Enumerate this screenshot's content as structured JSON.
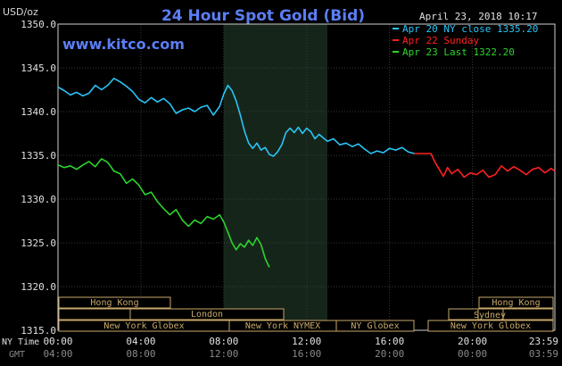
{
  "header": {
    "unit": "USD/oz",
    "title": "24 Hour Spot Gold (Bid)",
    "datetime": "April 23, 2018 10:17",
    "website": "www.kitco.com"
  },
  "legend": [
    {
      "label": "Apr 20 NY close 1335.20",
      "color": "#29c5f6"
    },
    {
      "label": "Apr 22 Sunday",
      "color": "#ff2020"
    },
    {
      "label": "Apr 23 Last 1322.20",
      "color": "#2bd42b"
    }
  ],
  "axes": {
    "x_label_ny": "NY Time",
    "x_label_gmt": "GMT",
    "ny_ticks": [
      "00:00",
      "04:00",
      "08:00",
      "12:00",
      "16:00",
      "20:00",
      "23:59"
    ],
    "gmt_ticks": [
      "04:00",
      "08:00",
      "12:00",
      "16:00",
      "20:00",
      "00:00",
      "03:59"
    ]
  },
  "sessions": {
    "row1": [
      {
        "label": "Hong Kong"
      },
      {
        "label": "Hong Kong"
      }
    ],
    "row2": [
      {
        "label": "London"
      },
      {
        "label": "Sydney"
      }
    ],
    "row3": [
      {
        "label": "New York Globex"
      },
      {
        "label": "New York NYMEX"
      },
      {
        "label": "NY Globex"
      },
      {
        "label": "New York Globex"
      }
    ]
  },
  "chart_data": {
    "type": "line",
    "x_unit": "hours (NY time)",
    "xlim": [
      0,
      23.98
    ],
    "ylim": [
      1315.0,
      1350.0
    ],
    "yticks": [
      "1315.0",
      "1320.0",
      "1325.0",
      "1330.0",
      "1335.0",
      "1340.0",
      "1345.0",
      "1350.0"
    ],
    "yticks_values": [
      1315,
      1320,
      1325,
      1330,
      1335,
      1340,
      1345,
      1350
    ],
    "shaded_region": [
      8.0,
      13.0
    ],
    "series": [
      {
        "name": "Apr 20 NY close 1335.20",
        "color": "#29c5f6",
        "x": [
          0,
          0.3,
          0.6,
          0.9,
          1.2,
          1.5,
          1.8,
          2.1,
          2.4,
          2.7,
          3.0,
          3.3,
          3.6,
          3.9,
          4.2,
          4.5,
          4.8,
          5.1,
          5.4,
          5.7,
          6.0,
          6.3,
          6.6,
          6.9,
          7.2,
          7.5,
          7.8,
          8.0,
          8.2,
          8.4,
          8.6,
          8.8,
          9.0,
          9.2,
          9.4,
          9.6,
          9.8,
          10.0,
          10.2,
          10.4,
          10.6,
          10.8,
          11.0,
          11.2,
          11.4,
          11.6,
          11.8,
          12.0,
          12.2,
          12.4,
          12.6,
          12.8,
          13.0,
          13.3,
          13.6,
          13.9,
          14.2,
          14.5,
          14.8,
          15.1,
          15.4,
          15.7,
          16.0,
          16.3,
          16.6,
          16.9,
          17.2
        ],
        "values": [
          1342.8,
          1342.4,
          1341.9,
          1342.2,
          1341.8,
          1342.1,
          1343.0,
          1342.5,
          1343.0,
          1343.8,
          1343.4,
          1342.9,
          1342.3,
          1341.4,
          1341.0,
          1341.6,
          1341.1,
          1341.5,
          1340.9,
          1339.8,
          1340.2,
          1340.4,
          1340.0,
          1340.5,
          1340.7,
          1339.6,
          1340.6,
          1342.0,
          1343.0,
          1342.4,
          1341.2,
          1339.6,
          1337.8,
          1336.4,
          1335.8,
          1336.4,
          1335.6,
          1335.9,
          1335.1,
          1334.9,
          1335.4,
          1336.2,
          1337.6,
          1338.1,
          1337.6,
          1338.2,
          1337.5,
          1338.1,
          1337.7,
          1336.9,
          1337.4,
          1337.0,
          1336.6,
          1336.9,
          1336.2,
          1336.4,
          1336.0,
          1336.3,
          1335.7,
          1335.2,
          1335.5,
          1335.3,
          1335.8,
          1335.6,
          1335.9,
          1335.4,
          1335.2
        ]
      },
      {
        "name": "Apr 22 Sunday",
        "color": "#ff2020",
        "x": [
          17.2,
          17.5,
          17.8,
          18.0,
          18.2,
          18.4,
          18.6,
          18.8,
          19.0,
          19.3,
          19.6,
          19.9,
          20.2,
          20.5,
          20.8,
          21.1,
          21.4,
          21.7,
          22.0,
          22.3,
          22.6,
          22.9,
          23.2,
          23.5,
          23.8,
          23.98
        ],
        "values": [
          1335.2,
          1335.2,
          1335.2,
          1335.2,
          1334.2,
          1333.4,
          1332.6,
          1333.6,
          1332.9,
          1333.4,
          1332.5,
          1333.0,
          1332.8,
          1333.3,
          1332.5,
          1332.8,
          1333.8,
          1333.2,
          1333.7,
          1333.3,
          1332.8,
          1333.4,
          1333.6,
          1333.0,
          1333.5,
          1333.2
        ]
      },
      {
        "name": "Apr 23 Last 1322.20",
        "color": "#2bd42b",
        "x": [
          0,
          0.3,
          0.6,
          0.9,
          1.2,
          1.5,
          1.8,
          2.1,
          2.4,
          2.7,
          3.0,
          3.3,
          3.6,
          3.9,
          4.2,
          4.5,
          4.8,
          5.1,
          5.4,
          5.7,
          6.0,
          6.3,
          6.6,
          6.9,
          7.2,
          7.5,
          7.8,
          8.0,
          8.2,
          8.4,
          8.6,
          8.8,
          9.0,
          9.2,
          9.4,
          9.6,
          9.8,
          10.0,
          10.2
        ],
        "values": [
          1333.9,
          1333.6,
          1333.8,
          1333.4,
          1333.9,
          1334.3,
          1333.7,
          1334.6,
          1334.2,
          1333.2,
          1332.9,
          1331.8,
          1332.3,
          1331.6,
          1330.5,
          1330.8,
          1329.7,
          1328.9,
          1328.2,
          1328.8,
          1327.6,
          1326.9,
          1327.6,
          1327.2,
          1328.0,
          1327.7,
          1328.2,
          1327.4,
          1326.2,
          1325.0,
          1324.2,
          1324.9,
          1324.5,
          1325.3,
          1324.7,
          1325.6,
          1324.8,
          1323.2,
          1322.2
        ]
      }
    ]
  }
}
